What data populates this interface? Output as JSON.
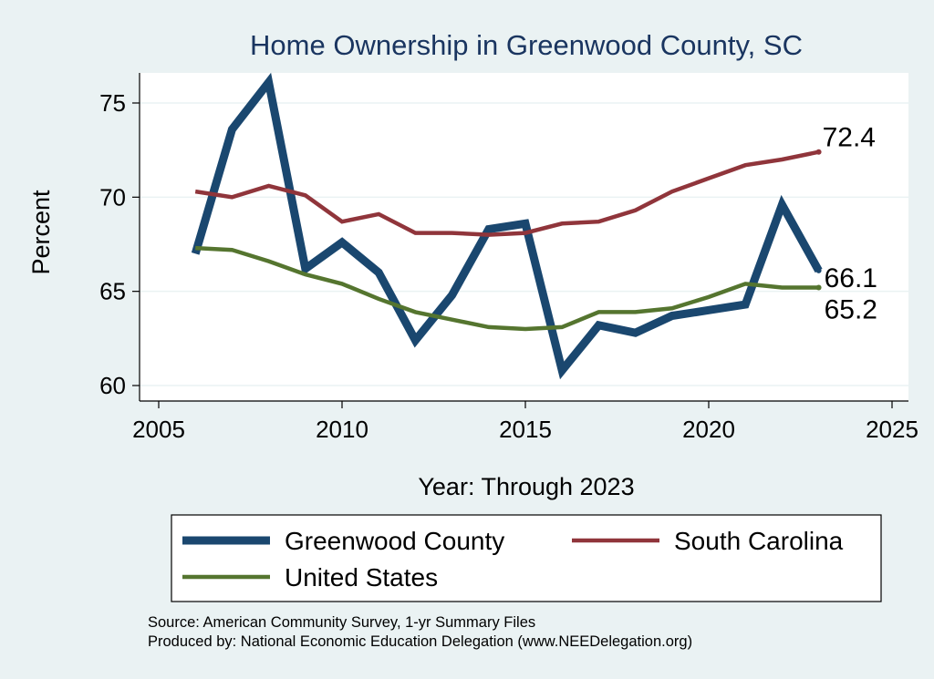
{
  "chart_data": {
    "type": "line",
    "title": "Home Ownership in Greenwood County, SC",
    "xlabel": "Year: Through 2023",
    "ylabel": "Percent",
    "xlim": [
      2005,
      2025
    ],
    "ylim": [
      59.5,
      76.8
    ],
    "xticks": [
      2005,
      2010,
      2015,
      2020,
      2025
    ],
    "yticks": [
      60,
      65,
      70,
      75
    ],
    "grid": true,
    "series": [
      {
        "name": "Greenwood County",
        "color": "#1a476f",
        "x": [
          2006,
          2007,
          2008,
          2009,
          2010,
          2011,
          2012,
          2013,
          2014,
          2015,
          2016,
          2017,
          2018,
          2019,
          2020,
          2021,
          2022,
          2023
        ],
        "values": [
          67.0,
          73.6,
          76.1,
          66.2,
          67.6,
          66.0,
          62.4,
          64.8,
          68.3,
          68.6,
          60.8,
          63.2,
          62.8,
          63.7,
          64.0,
          64.3,
          69.6,
          66.1
        ],
        "end_label": "66.1"
      },
      {
        "name": "South Carolina",
        "color": "#90353b",
        "x": [
          2006,
          2007,
          2008,
          2009,
          2010,
          2011,
          2012,
          2013,
          2014,
          2015,
          2016,
          2017,
          2018,
          2019,
          2020,
          2021,
          2022,
          2023
        ],
        "values": [
          70.3,
          70.0,
          70.6,
          70.1,
          68.7,
          69.1,
          68.1,
          68.1,
          68.0,
          68.1,
          68.6,
          68.7,
          69.3,
          70.3,
          71.0,
          71.7,
          72.0,
          72.4
        ],
        "end_label": "72.4"
      },
      {
        "name": "United States",
        "color": "#55752f",
        "x": [
          2006,
          2007,
          2008,
          2009,
          2010,
          2011,
          2012,
          2013,
          2014,
          2015,
          2016,
          2017,
          2018,
          2019,
          2020,
          2021,
          2022,
          2023
        ],
        "values": [
          67.3,
          67.2,
          66.6,
          65.9,
          65.4,
          64.6,
          63.9,
          63.5,
          63.1,
          63.0,
          63.1,
          63.9,
          63.9,
          64.1,
          64.7,
          65.4,
          65.2,
          65.2
        ],
        "end_label": "65.2"
      }
    ],
    "legend": {
      "position": "bottom",
      "entries": [
        "Greenwood County",
        "South Carolina",
        "United States"
      ]
    },
    "notes": [
      "Source: American Community Survey, 1-yr Summary Files",
      "Produced by: National Economic Education Delegation (www.NEEDelegation.org)"
    ]
  }
}
